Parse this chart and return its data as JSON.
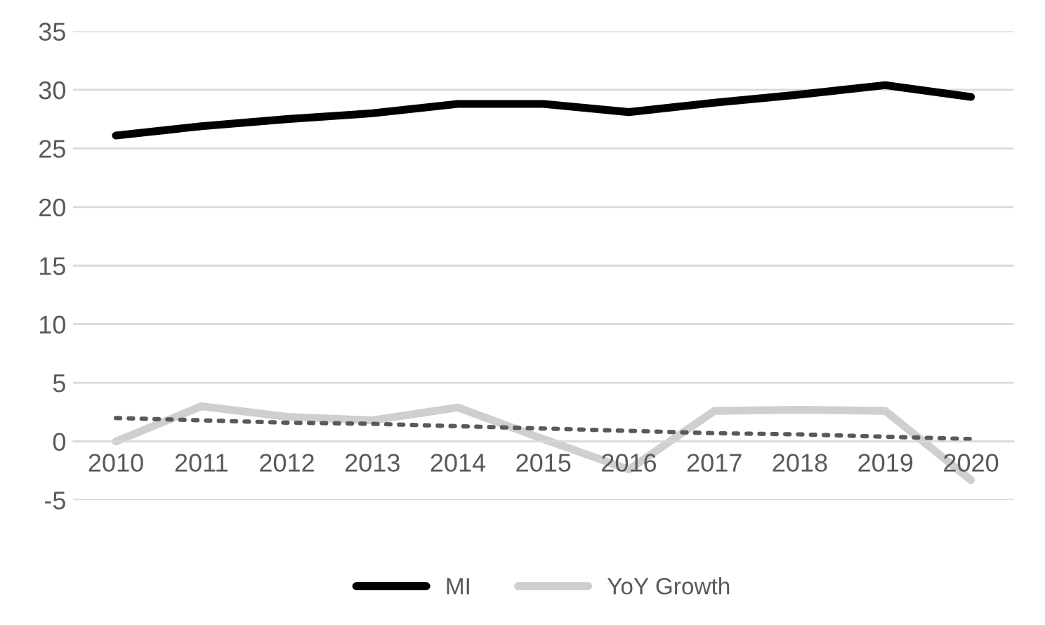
{
  "chart_data": {
    "type": "line",
    "categories": [
      "2010",
      "2011",
      "2012",
      "2013",
      "2014",
      "2015",
      "2016",
      "2017",
      "2018",
      "2019",
      "2020"
    ],
    "series": [
      {
        "name": "MI",
        "color": "#000000",
        "values": [
          26.1,
          26.9,
          27.5,
          28.0,
          28.8,
          28.8,
          28.1,
          28.9,
          29.6,
          30.4,
          29.4
        ]
      },
      {
        "name": "YoY Growth",
        "color": "#d0cece",
        "values": [
          0.0,
          3.0,
          2.1,
          1.8,
          2.9,
          0.2,
          -2.4,
          2.6,
          2.7,
          2.6,
          -3.3
        ]
      },
      {
        "color": "#595959",
        "line_style": "dotted",
        "values": [
          2.0,
          1.8,
          1.6,
          1.5,
          1.3,
          1.1,
          0.9,
          0.7,
          0.6,
          0.4,
          0.2
        ]
      }
    ],
    "ylim": [
      -5,
      35
    ],
    "yticks": [
      -5,
      0,
      5,
      10,
      15,
      20,
      25,
      30,
      35
    ],
    "grid": "y",
    "legend": "bottom"
  }
}
